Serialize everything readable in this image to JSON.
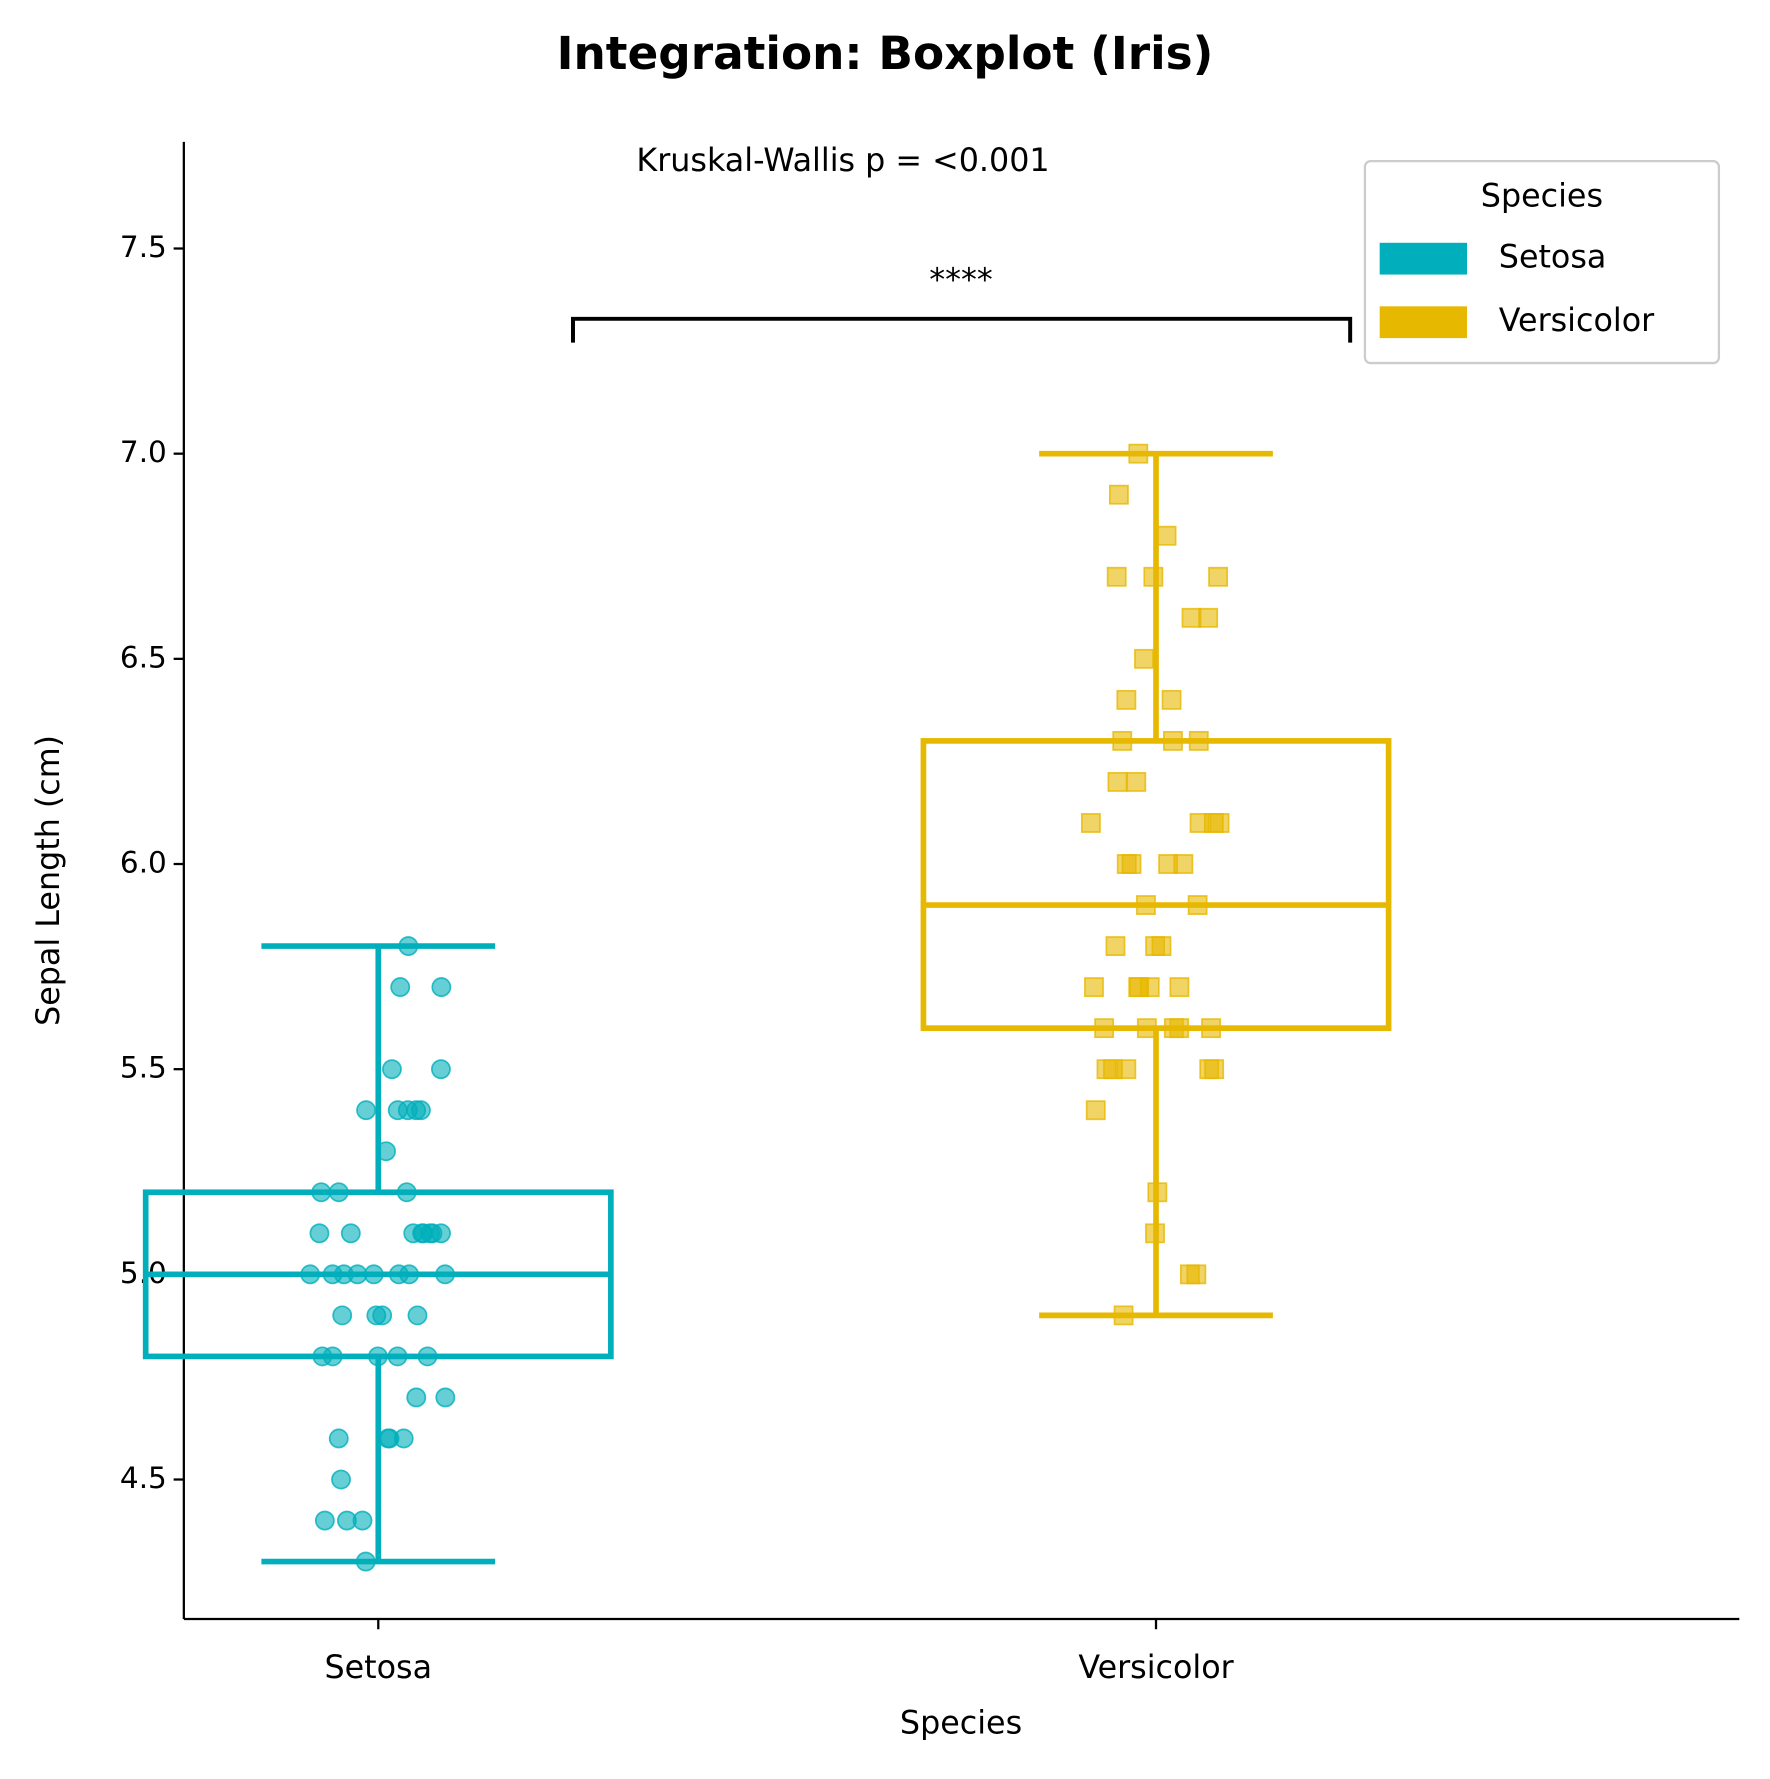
{
  "chart_data": {
    "type": "box",
    "title": "Integration: Boxplot (Iris)",
    "x_label": "Species",
    "y_label": "Sepal Length (cm)",
    "annotation": "Kruskal-Wallis p = <0.001",
    "significance": "****",
    "categories": [
      "Setosa",
      "Versicolor"
    ],
    "series": [
      {
        "name": "Setosa",
        "color": "#00AFBB",
        "marker": "circle",
        "whisker_low": 4.3,
        "q1": 4.8,
        "median": 5.0,
        "q3": 5.2,
        "whisker_high": 5.8,
        "points": [
          5.1,
          4.9,
          4.7,
          4.6,
          5.0,
          5.4,
          4.6,
          5.0,
          4.4,
          4.9,
          5.4,
          4.8,
          4.8,
          4.3,
          5.8,
          5.7,
          5.4,
          5.1,
          5.7,
          5.1,
          5.4,
          5.1,
          4.6,
          5.1,
          4.8,
          5.0,
          5.0,
          5.2,
          5.2,
          4.7,
          4.8,
          5.4,
          5.2,
          5.5,
          4.9,
          5.0,
          5.5,
          4.9,
          4.4,
          5.1,
          5.0,
          4.5,
          4.4,
          5.0,
          5.1,
          4.8,
          5.1,
          4.6,
          5.3,
          5.0
        ]
      },
      {
        "name": "Versicolor",
        "color": "#E7B800",
        "marker": "square",
        "whisker_low": 4.9,
        "q1": 5.6,
        "median": 5.9,
        "q3": 6.3,
        "whisker_high": 7.0,
        "points": [
          7.0,
          6.4,
          6.9,
          5.5,
          6.5,
          5.7,
          6.3,
          4.9,
          6.6,
          5.2,
          5.0,
          5.9,
          6.0,
          6.1,
          5.6,
          6.7,
          5.6,
          5.8,
          6.2,
          5.6,
          5.9,
          6.1,
          6.3,
          6.1,
          6.4,
          6.6,
          6.8,
          6.7,
          6.0,
          5.7,
          5.5,
          5.5,
          5.8,
          6.0,
          5.4,
          6.0,
          6.7,
          6.3,
          5.6,
          5.5,
          5.5,
          6.1,
          5.8,
          5.0,
          5.6,
          5.7,
          5.7,
          6.2,
          5.1,
          5.7
        ]
      }
    ],
    "ylim": [
      4.16,
      7.76
    ],
    "yticks": [
      4.5,
      {
        "value": 5,
        "label": "5.0"
      },
      5.5,
      {
        "value": 6,
        "label": "6.0"
      },
      6.5,
      {
        "value": 7,
        "label": "7.0"
      },
      7.5
    ],
    "legend_title": "Species",
    "legend": "upper right"
  }
}
